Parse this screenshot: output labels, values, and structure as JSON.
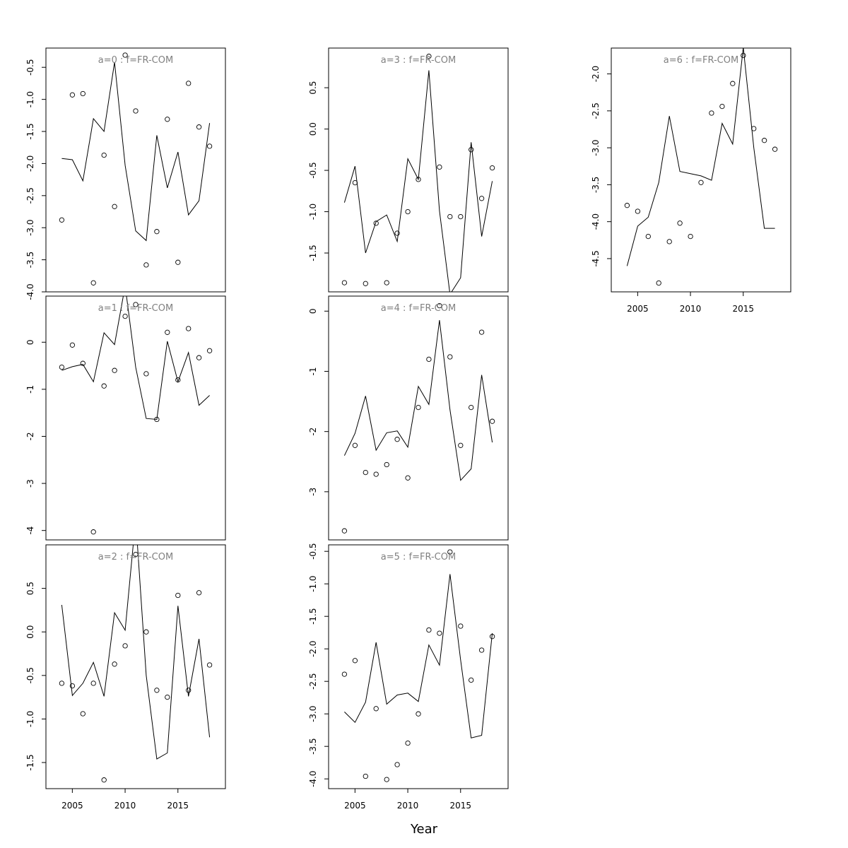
{
  "chart_data": {
    "type": "line",
    "xlabel": "Year",
    "x_ticks": [
      2005,
      2010,
      2015
    ],
    "xlim": [
      2002.5,
      2019.5
    ],
    "colors": {
      "line": "#000000",
      "points": "#000000",
      "title": "#808080"
    },
    "panels": [
      {
        "title": "a=0  :  f=FR-COM",
        "ylim": [
          -4.0,
          -0.2
        ],
        "yticks": [
          -0.5,
          -1.0,
          -1.5,
          -2.0,
          -2.5,
          -3.0,
          -3.5,
          -4.0
        ],
        "ytick_labels": [
          "-0.5",
          "-1.0",
          "-1.5",
          "-2.0",
          "-2.5",
          "-3.0",
          "-3.5",
          "-4.0"
        ],
        "x": [
          2004,
          2005,
          2006,
          2007,
          2008,
          2009,
          2010,
          2011,
          2012,
          2013,
          2014,
          2015,
          2016,
          2017,
          2018
        ],
        "line": [
          -1.92,
          -1.94,
          -2.27,
          -1.3,
          -1.5,
          -0.42,
          -2.03,
          -3.05,
          -3.2,
          -1.56,
          -2.38,
          -1.82,
          -2.8,
          -2.58,
          -1.37
        ],
        "points": [
          -2.88,
          -0.93,
          -0.91,
          -3.86,
          -1.87,
          -2.67,
          -0.31,
          -1.18,
          -3.58,
          -3.06,
          -1.31,
          -3.54,
          -0.75,
          -1.43,
          -1.73
        ],
        "show_x_axis": false
      },
      {
        "title": "a=1  :  f=FR-COM",
        "ylim": [
          -4.2,
          0.98
        ],
        "yticks": [
          0,
          -1,
          -2,
          -3,
          -4
        ],
        "ytick_labels": [
          "0",
          "-1",
          "-2",
          "-3",
          "-4"
        ],
        "x": [
          2004,
          2005,
          2006,
          2007,
          2008,
          2009,
          2010,
          2011,
          2012,
          2013,
          2014,
          2015,
          2016,
          2017,
          2018
        ],
        "line": [
          -0.6,
          -0.52,
          -0.47,
          -0.84,
          0.2,
          -0.05,
          1.2,
          -0.53,
          -1.62,
          -1.64,
          0.02,
          -0.84,
          -0.22,
          -1.34,
          -1.13
        ],
        "points": [
          -0.53,
          -0.06,
          -0.45,
          -4.03,
          -0.93,
          -0.6,
          0.55,
          0.8,
          -0.67,
          -1.64,
          0.21,
          -0.8,
          0.29,
          -0.33,
          -0.18
        ],
        "show_x_axis": false
      },
      {
        "title": "a=2  :  f=FR-COM",
        "ylim": [
          -1.8,
          1.0
        ],
        "yticks": [
          0.5,
          0.0,
          -0.5,
          -1.0,
          -1.5
        ],
        "ytick_labels": [
          "0.5",
          "0.0",
          "-0.5",
          "-1.0",
          "-1.5"
        ],
        "x": [
          2004,
          2005,
          2006,
          2007,
          2008,
          2009,
          2010,
          2011,
          2012,
          2013,
          2014,
          2015,
          2016,
          2017,
          2018
        ],
        "line": [
          0.31,
          -0.73,
          -0.59,
          -0.35,
          -0.74,
          0.22,
          0.02,
          1.3,
          -0.5,
          -1.46,
          -1.39,
          0.3,
          -0.74,
          -0.08,
          -1.21
        ],
        "points": [
          -0.59,
          -0.62,
          -0.94,
          -0.59,
          -1.7,
          -0.37,
          -0.16,
          0.89,
          0.0,
          -0.67,
          -0.75,
          0.42,
          -0.67,
          0.45,
          -0.38
        ],
        "show_x_axis": true
      },
      {
        "title": "a=3  :  f=FR-COM",
        "ylim": [
          -1.97,
          0.98
        ],
        "yticks": [
          0.5,
          0.0,
          -0.5,
          -1.0,
          -1.5
        ],
        "ytick_labels": [
          "0.5",
          "0.0",
          "-0.5",
          "-1.0",
          "-1.5"
        ],
        "x": [
          2004,
          2005,
          2006,
          2007,
          2008,
          2009,
          2010,
          2011,
          2012,
          2013,
          2014,
          2015,
          2016,
          2017,
          2018
        ],
        "line": [
          -0.89,
          -0.45,
          -1.5,
          -1.12,
          -1.04,
          -1.36,
          -0.36,
          -0.61,
          0.71,
          -0.99,
          -2.0,
          -1.8,
          -0.16,
          -1.3,
          -0.63
        ],
        "points": [
          -1.86,
          -0.65,
          -1.87,
          -1.14,
          -1.86,
          -1.26,
          -1.0,
          -0.61,
          0.88,
          -0.46,
          -1.06,
          -1.06,
          -0.25,
          -0.84,
          -0.47
        ],
        "show_x_axis": false
      },
      {
        "title": "a=4  :  f=FR-COM",
        "ylim": [
          -3.8,
          0.25
        ],
        "yticks": [
          0,
          -1,
          -2,
          -3
        ],
        "ytick_labels": [
          "0",
          "-1",
          "-2",
          "-3"
        ],
        "x": [
          2004,
          2005,
          2006,
          2007,
          2008,
          2009,
          2010,
          2011,
          2012,
          2013,
          2014,
          2015,
          2016,
          2017,
          2018
        ],
        "line": [
          -2.4,
          -2.03,
          -1.41,
          -2.31,
          -2.02,
          -1.99,
          -2.26,
          -1.25,
          -1.55,
          -0.15,
          -1.64,
          -2.81,
          -2.62,
          -1.06,
          -2.18
        ],
        "points": [
          -3.65,
          -2.23,
          -2.68,
          -2.71,
          -2.55,
          -2.13,
          -2.77,
          -1.6,
          -0.8,
          0.09,
          -0.76,
          -2.23,
          -1.6,
          -0.35,
          -1.83
        ],
        "show_x_axis": false
      },
      {
        "title": "a=5  :  f=FR-COM",
        "ylim": [
          -4.15,
          -0.4
        ],
        "yticks": [
          -0.5,
          -1.0,
          -1.5,
          -2.0,
          -2.5,
          -3.0,
          -3.5,
          -4.0
        ],
        "ytick_labels": [
          "-0.5",
          "-1.0",
          "-1.5",
          "-2.0",
          "-2.5",
          "-3.0",
          "-3.5",
          "-4.0"
        ],
        "x": [
          2004,
          2005,
          2006,
          2007,
          2008,
          2009,
          2010,
          2011,
          2012,
          2013,
          2014,
          2015,
          2016,
          2017,
          2018
        ],
        "line": [
          -2.97,
          -3.13,
          -2.82,
          -1.9,
          -2.85,
          -2.71,
          -2.68,
          -2.81,
          -1.94,
          -2.25,
          -0.85,
          -2.17,
          -3.37,
          -3.33,
          -1.76
        ],
        "points": [
          -2.39,
          -2.18,
          -3.96,
          -2.92,
          -4.01,
          -3.78,
          -3.45,
          -3.0,
          -1.71,
          -1.76,
          -0.51,
          -1.65,
          -2.48,
          -2.02,
          -1.81
        ],
        "show_x_axis": true
      },
      {
        "title": "a=6  :  f=FR-COM",
        "ylim": [
          -4.95,
          -1.65
        ],
        "yticks": [
          -2.0,
          -2.5,
          -3.0,
          -3.5,
          -4.0,
          -4.5
        ],
        "ytick_labels": [
          "-2.0",
          "-2.5",
          "-3.0",
          "-3.5",
          "-4.0",
          "-4.5"
        ],
        "x": [
          2004,
          2005,
          2006,
          2007,
          2008,
          2009,
          2010,
          2011,
          2012,
          2013,
          2014,
          2015,
          2016,
          2017,
          2018
        ],
        "line": [
          -4.6,
          -4.06,
          -3.94,
          -3.47,
          -2.57,
          -3.32,
          -3.35,
          -3.38,
          -3.44,
          -2.67,
          -2.95,
          -1.64,
          -3.0,
          -4.09,
          -4.09
        ],
        "points": [
          -3.78,
          -3.86,
          -4.2,
          -4.83,
          -4.27,
          -4.02,
          -4.2,
          -3.47,
          -2.53,
          -2.44,
          -2.13,
          -1.75,
          -2.74,
          -2.9,
          -3.02
        ],
        "show_x_axis": true
      }
    ]
  }
}
